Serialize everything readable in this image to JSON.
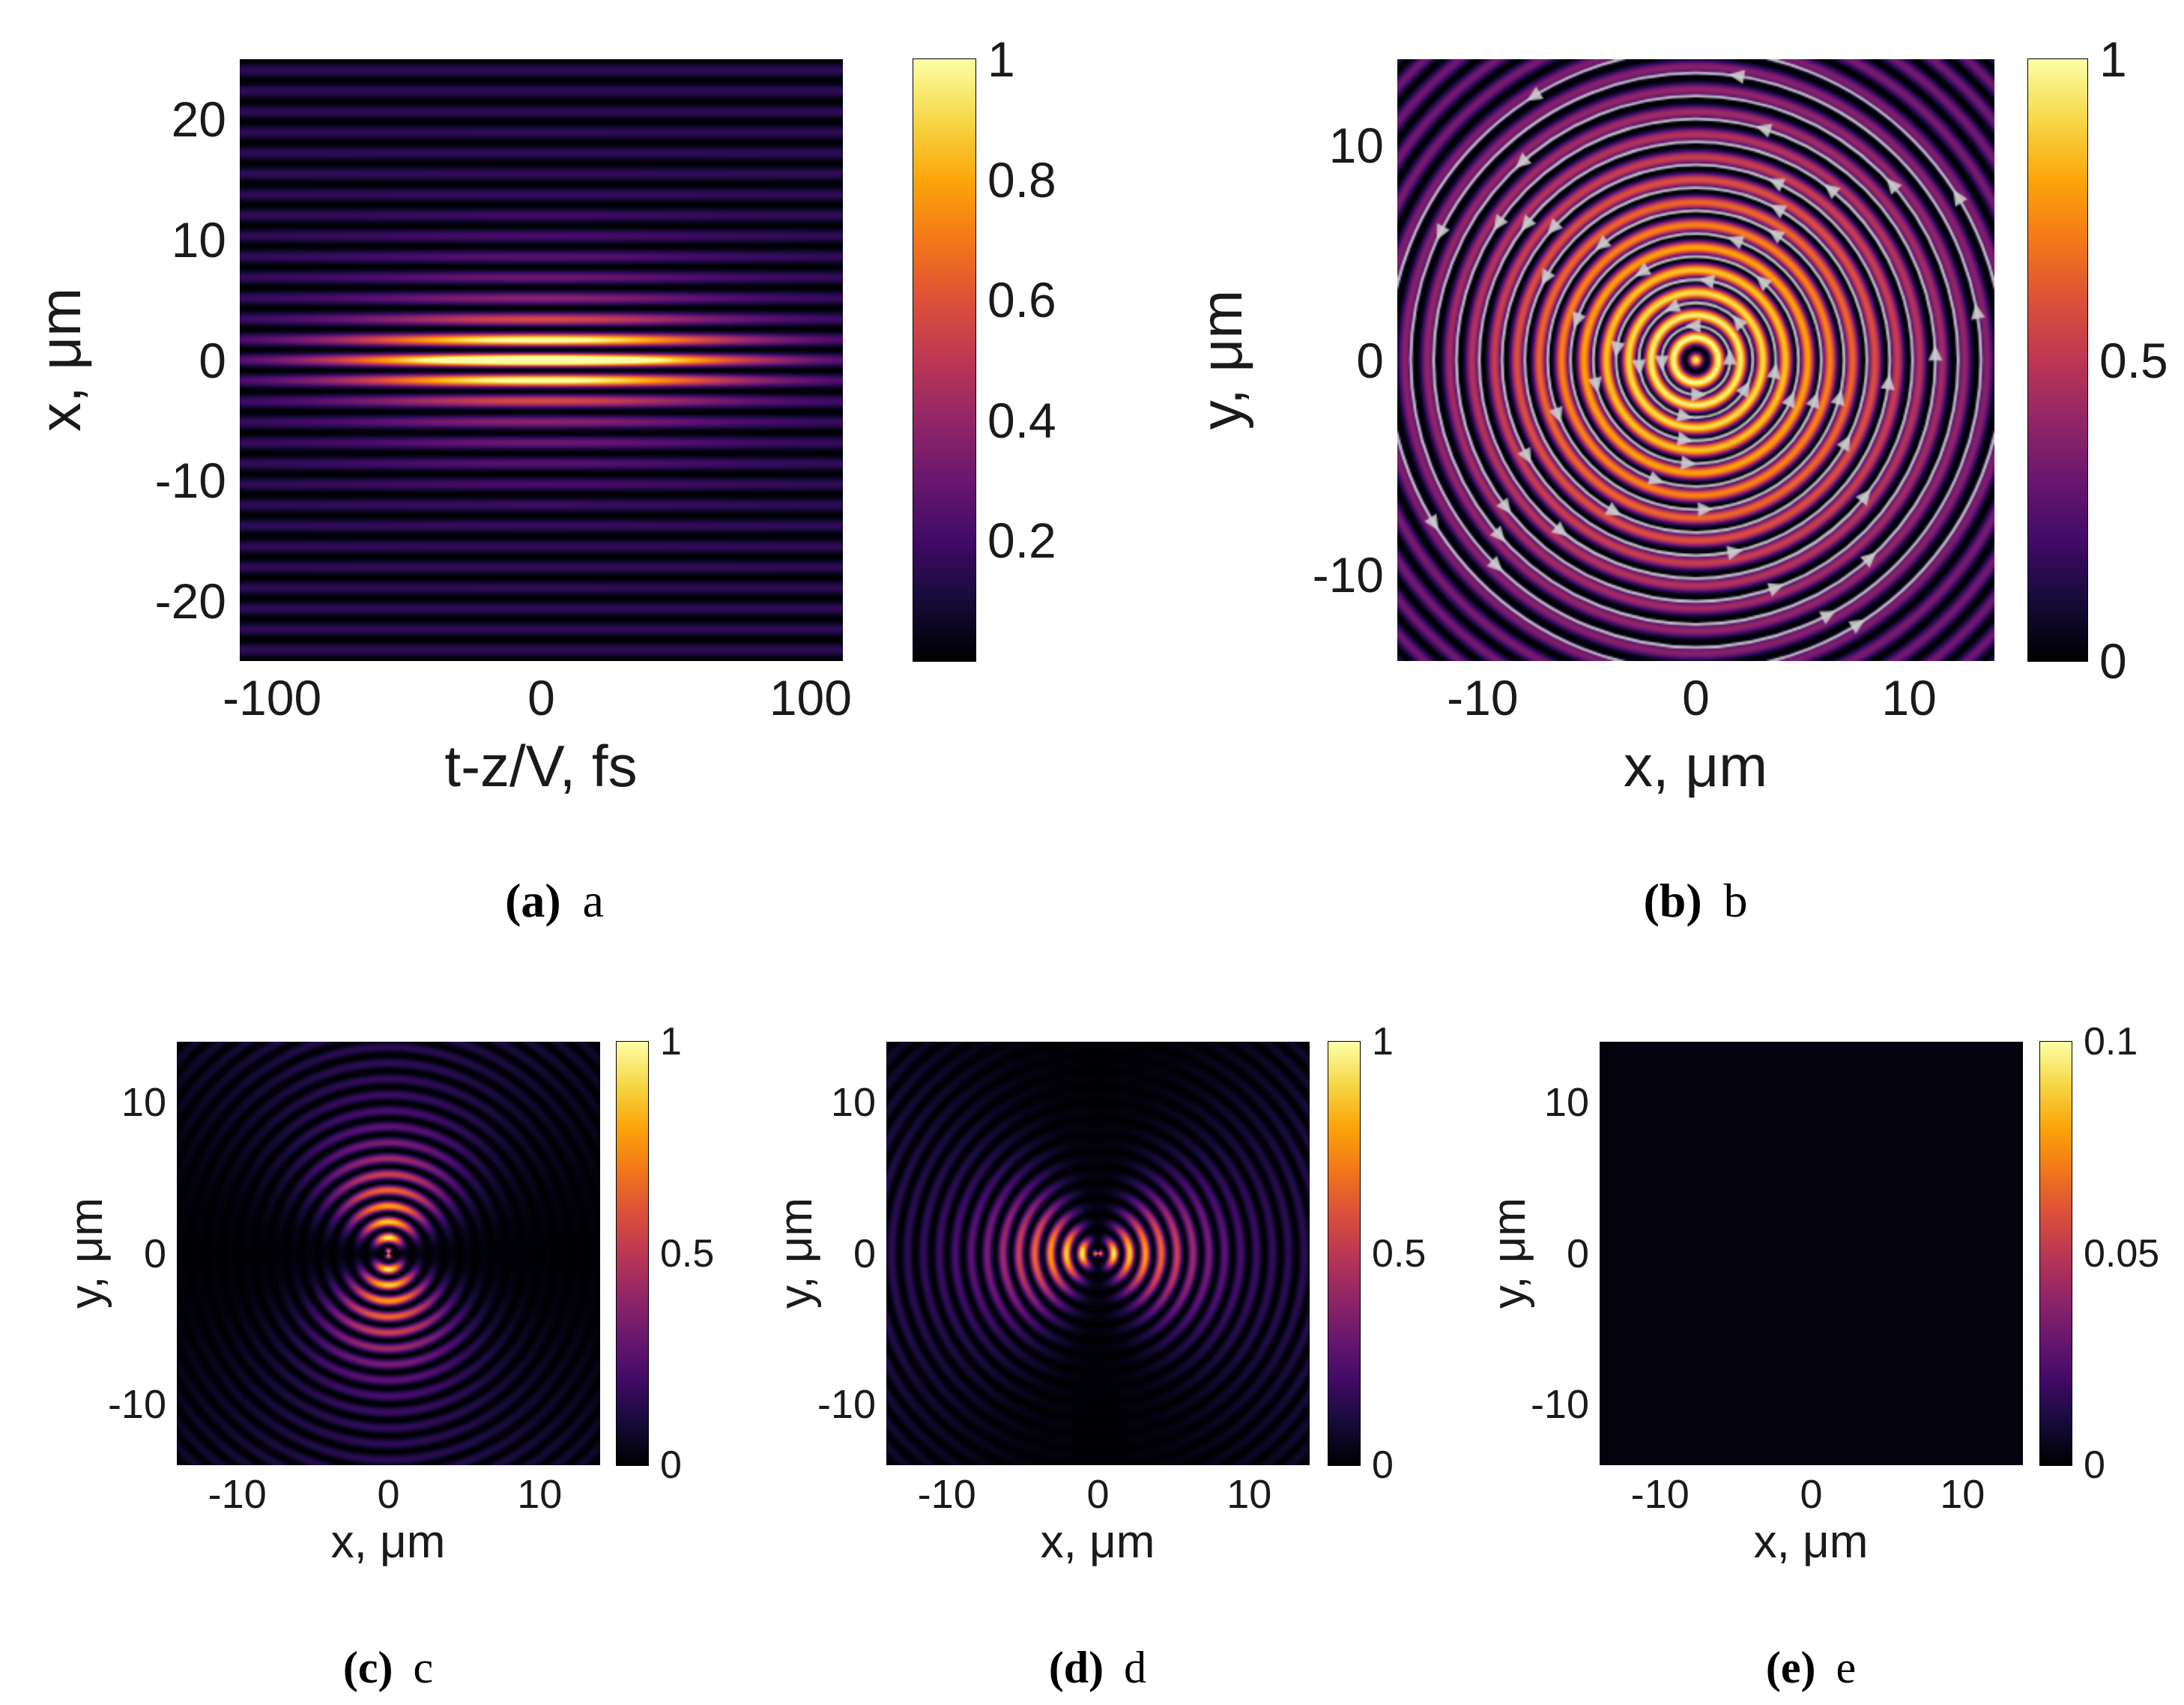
{
  "captions": [
    {
      "bold": "(a)",
      "text": "a"
    },
    {
      "bold": "(b)",
      "text": "b"
    },
    {
      "bold": "(c)",
      "text": "c"
    },
    {
      "bold": "(d)",
      "text": "d"
    },
    {
      "bold": "(e)",
      "text": "e"
    }
  ],
  "colormap": {
    "name": "inferno-like",
    "stops": [
      [
        0,
        0,
        4
      ],
      [
        22,
        11,
        57
      ],
      [
        66,
        10,
        104
      ],
      [
        106,
        23,
        110
      ],
      [
        147,
        38,
        103
      ],
      [
        188,
        55,
        84
      ],
      [
        221,
        81,
        58
      ],
      [
        243,
        120,
        25
      ],
      [
        252,
        165,
        10
      ],
      [
        246,
        215,
        70
      ],
      [
        252,
        255,
        164
      ]
    ]
  },
  "chart_data": [
    {
      "id": "a",
      "type": "heatmap",
      "description": "Spatiotemporal intensity map: horizontal interference fringes along x with a bright central stripe elongated in t-z/V; peak normalized intensity 1 at (0,0), dim periodic fringes (~0.15-0.2) elsewhere, fringe period ~1.7 um.",
      "xlabel": "t-z/V, fs",
      "ylabel": "x, μm",
      "x_range": [
        -112,
        112
      ],
      "y_range": [
        -25,
        25
      ],
      "xticks": [
        {
          "v": -100,
          "label": "-100"
        },
        {
          "v": 0,
          "label": "0"
        },
        {
          "v": 100,
          "label": "100"
        }
      ],
      "yticks": [
        {
          "v": 20,
          "label": "20"
        },
        {
          "v": 10,
          "label": "10"
        },
        {
          "v": 0,
          "label": "0"
        },
        {
          "v": -10,
          "label": "-10"
        },
        {
          "v": -20,
          "label": "-20"
        }
      ],
      "colorbar": {
        "range": [
          0,
          1
        ],
        "ticks": [
          {
            "v": 1,
            "label": "1"
          },
          {
            "v": 0.8,
            "label": "0.8"
          },
          {
            "v": 0.6,
            "label": "0.6"
          },
          {
            "v": 0.4,
            "label": "0.4"
          },
          {
            "v": 0.2,
            "label": "0.2"
          }
        ]
      },
      "model": {
        "kind": "stripes",
        "period": 1.72,
        "floor": 0.16,
        "amp": 0.95,
        "sigma_t": 70,
        "sigma_x": 2.6,
        "halo": 0.32,
        "sigma_halo": 8
      }
    },
    {
      "id": "b",
      "type": "heatmap",
      "description": "Transverse intensity: concentric bright rings (period ~1.05 um) with white core at origin, intensity envelope decaying outward from 1 to ~0.3; gray circular energy-flow streamlines with arrowheads overlaid.",
      "xlabel": "x, μm",
      "ylabel": "y, μm",
      "x_range": [
        -14,
        14
      ],
      "y_range": [
        -14,
        14
      ],
      "xticks": [
        {
          "v": -10,
          "label": "-10"
        },
        {
          "v": 0,
          "label": "0"
        },
        {
          "v": 10,
          "label": "10"
        }
      ],
      "yticks": [
        {
          "v": 10,
          "label": "10"
        },
        {
          "v": 0,
          "label": "0"
        },
        {
          "v": -10,
          "label": "-10"
        }
      ],
      "colorbar": {
        "range": [
          0,
          1
        ],
        "ticks": [
          {
            "v": 1,
            "label": "1"
          },
          {
            "v": 0.5,
            "label": "0.5"
          },
          {
            "v": 0,
            "label": "0"
          }
        ]
      },
      "model": {
        "kind": "rings",
        "period": 1.05,
        "floor": 0.3,
        "amp": 0.7,
        "sigma_r": 9,
        "streamlines": {
          "r0": 1.6,
          "step": 1.07,
          "count": 13,
          "color": "rgba(205,205,205,0.9)"
        }
      }
    },
    {
      "id": "c",
      "type": "heatmap",
      "description": "Concentric ring pattern with a dark horizontal nodal line through y=0; two bright lobes above/below the center; ring period ~1.05 um, envelope decays from 1 to ~0.15.",
      "xlabel": "x, μm",
      "ylabel": "y, μm",
      "x_range": [
        -14,
        14
      ],
      "y_range": [
        -14,
        14
      ],
      "xticks": [
        {
          "v": -10,
          "label": "-10"
        },
        {
          "v": 0,
          "label": "0"
        },
        {
          "v": 10,
          "label": "10"
        }
      ],
      "yticks": [
        {
          "v": 10,
          "label": "10"
        },
        {
          "v": 0,
          "label": "0"
        },
        {
          "v": -10,
          "label": "-10"
        }
      ],
      "colorbar": {
        "range": [
          0,
          1
        ],
        "ticks": [
          {
            "v": 1,
            "label": "1"
          },
          {
            "v": 0.5,
            "label": "0.5"
          },
          {
            "v": 0,
            "label": "0"
          }
        ]
      },
      "model": {
        "kind": "rings_node",
        "node": "horizontal",
        "period": 1.05,
        "floor": 0.15,
        "amp": 0.85,
        "sigma_r": 6
      }
    },
    {
      "id": "d",
      "type": "heatmap",
      "description": "Concentric ring pattern with a dark vertical nodal line through x=0; two bright lobes left/right of center; ring period ~1.05 um, envelope decays from 1 to ~0.15.",
      "xlabel": "x, μm",
      "ylabel": "y, μm",
      "x_range": [
        -14,
        14
      ],
      "y_range": [
        -14,
        14
      ],
      "xticks": [
        {
          "v": -10,
          "label": "-10"
        },
        {
          "v": 0,
          "label": "0"
        },
        {
          "v": 10,
          "label": "10"
        }
      ],
      "yticks": [
        {
          "v": 10,
          "label": "10"
        },
        {
          "v": 0,
          "label": "0"
        },
        {
          "v": -10,
          "label": "-10"
        }
      ],
      "colorbar": {
        "range": [
          0,
          1
        ],
        "ticks": [
          {
            "v": 1,
            "label": "1"
          },
          {
            "v": 0.5,
            "label": "0.5"
          },
          {
            "v": 0,
            "label": "0"
          }
        ]
      },
      "model": {
        "kind": "rings_node",
        "node": "vertical",
        "period": 1.05,
        "floor": 0.15,
        "amp": 0.85,
        "sigma_r": 6
      }
    },
    {
      "id": "e",
      "type": "heatmap",
      "description": "Uniform near-zero intensity map (appears solid black); colorbar range 0 to 0.1.",
      "xlabel": "x, μm",
      "ylabel": "y, μm",
      "x_range": [
        -14,
        14
      ],
      "y_range": [
        -14,
        14
      ],
      "xticks": [
        {
          "v": -10,
          "label": "-10"
        },
        {
          "v": 0,
          "label": "0"
        },
        {
          "v": 10,
          "label": "10"
        }
      ],
      "yticks": [
        {
          "v": 10,
          "label": "10"
        },
        {
          "v": 0,
          "label": "0"
        },
        {
          "v": -10,
          "label": "-10"
        }
      ],
      "colorbar": {
        "range": [
          0,
          0.1
        ],
        "ticks": [
          {
            "v": 0.1,
            "label": "0.1"
          },
          {
            "v": 0.05,
            "label": "0.05"
          },
          {
            "v": 0,
            "label": "0"
          }
        ]
      },
      "model": {
        "kind": "flat",
        "value": 0.02
      }
    }
  ]
}
